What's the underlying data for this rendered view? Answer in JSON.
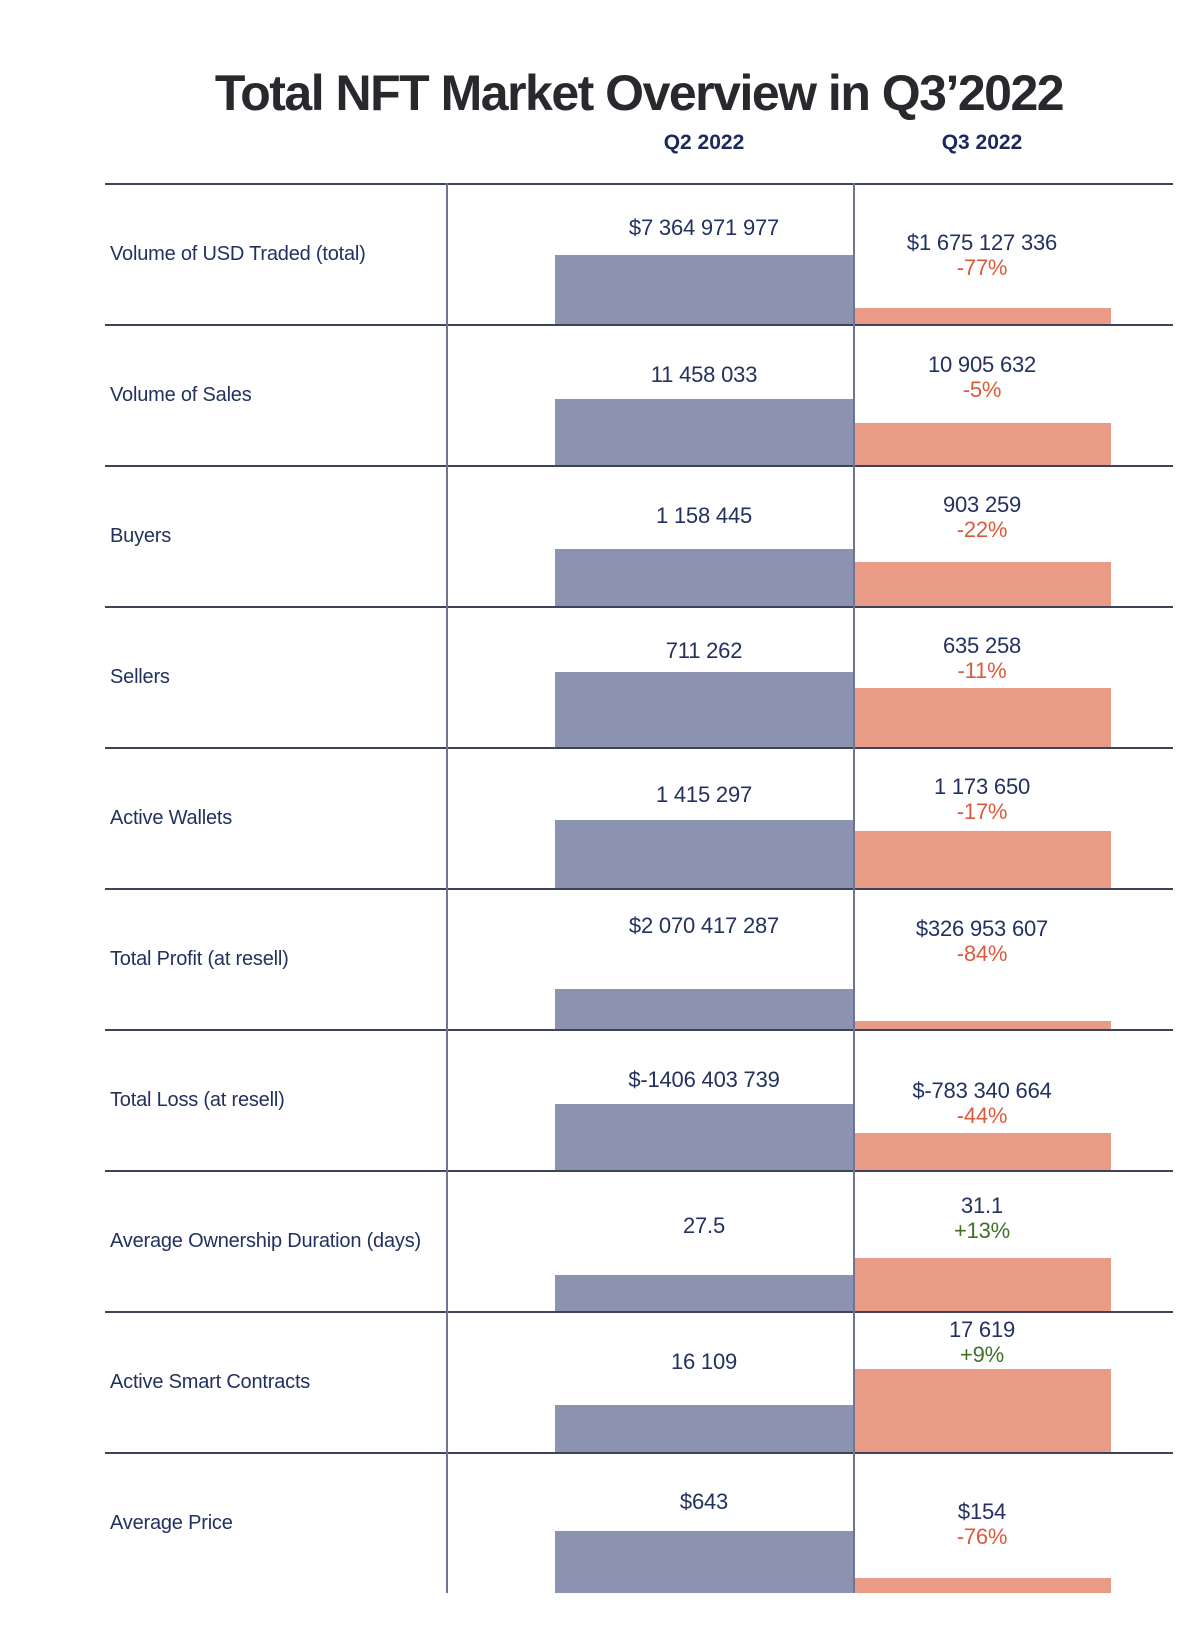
{
  "title": "Total NFT Market Overview in Q3’2022",
  "columns": {
    "q2": "Q2 2022",
    "q3": "Q3 2022"
  },
  "colors": {
    "q2_bar": "#8b93b0",
    "q3_bar": "#e99b85",
    "negative": "#dc5a3c",
    "positive": "#41702b",
    "value_text": "#22315f",
    "title_text": "#28292d",
    "hline": "#3d4359",
    "vline": "#6d7494"
  },
  "rows": [
    {
      "label": "Volume of USD Traded (total)",
      "q2": "$7 364 971 977",
      "q3": "$1 675 127 336",
      "change": "-77%",
      "trend": "down",
      "q2_bar_h": 69,
      "q3_bar_h": 16
    },
    {
      "label": "Volume of Sales",
      "q2": "11 458 033",
      "q3": "10 905 632",
      "change": "-5%",
      "trend": "down",
      "q2_bar_h": 66,
      "q3_bar_h": 42
    },
    {
      "label": "Buyers",
      "q2": "1 158 445",
      "q3": "903 259",
      "change": "-22%",
      "trend": "down",
      "q2_bar_h": 57,
      "q3_bar_h": 44
    },
    {
      "label": "Sellers",
      "q2": "711 262",
      "q3": "635 258",
      "change": "-11%",
      "trend": "down",
      "q2_bar_h": 75,
      "q3_bar_h": 59
    },
    {
      "label": "Active Wallets",
      "q2": "1 415 297",
      "q3": "1 173 650",
      "change": "-17%",
      "trend": "down",
      "q2_bar_h": 68,
      "q3_bar_h": 57
    },
    {
      "label": "Total Profit (at resell)",
      "q2": "$2 070 417 287",
      "q3": "$326 953 607",
      "change": "-84%",
      "trend": "down",
      "q2_bar_h": 40,
      "q3_bar_h": 8
    },
    {
      "label": "Total Loss (at resell)",
      "q2": "$-1406 403 739",
      "q3": "$-783 340 664",
      "change": "-44%",
      "trend": "down",
      "q2_bar_h": 66,
      "q3_bar_h": 37
    },
    {
      "label": "Average Ownership Duration (days)",
      "q2": "27.5",
      "q3": "31.1",
      "change": "+13%",
      "trend": "up",
      "q2_bar_h": 36,
      "q3_bar_h": 53
    },
    {
      "label": "Active Smart Contracts",
      "q2": "16 109",
      "q3": "17 619",
      "change": "+9%",
      "trend": "up",
      "q2_bar_h": 47,
      "q3_bar_h": 83
    },
    {
      "label": "Average Price",
      "q2": "$643",
      "q3": "$154",
      "change": "-76%",
      "trend": "down",
      "q2_bar_h": 62,
      "q3_bar_h": 15
    }
  ],
  "chart_data": {
    "type": "bar",
    "title": "Total NFT Market Overview in Q3’2022",
    "categories": [
      "Volume of USD Traded (total)",
      "Volume of Sales",
      "Buyers",
      "Sellers",
      "Active Wallets",
      "Total Profit (at resell)",
      "Total Loss (at resell)",
      "Average Ownership Duration (days)",
      "Active Smart Contracts",
      "Average Price"
    ],
    "series": [
      {
        "name": "Q2 2022",
        "values": [
          7364971977,
          11458033,
          1158445,
          711262,
          1415297,
          2070417287,
          -1406403739,
          27.5,
          16109,
          643
        ]
      },
      {
        "name": "Q3 2022",
        "values": [
          1675127336,
          10905632,
          903259,
          635258,
          1173650,
          326953607,
          -783340664,
          31.1,
          17619,
          154
        ]
      }
    ],
    "change_pct": [
      -77,
      -5,
      -22,
      -11,
      -17,
      -84,
      -44,
      13,
      9,
      -76
    ],
    "legend_position": "top-as-column-headers",
    "grid": "horizontal row separators only",
    "layout": "two-column comparison; Q2 bars slate-blue flush-right to center divider, Q3 bars salmon flush-left; bar bottoms sit on row baseline"
  }
}
